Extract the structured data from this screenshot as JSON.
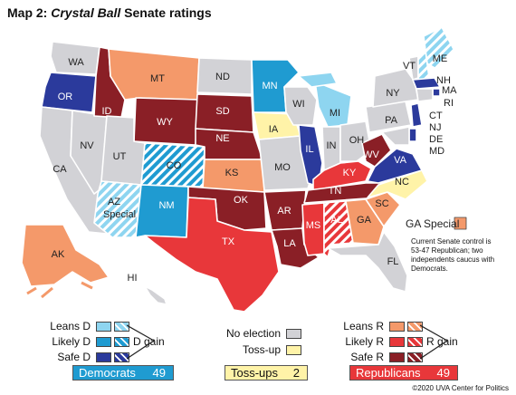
{
  "title": {
    "prefix": "Map 2: ",
    "italic": "Crystal Ball",
    "suffix": " Senate ratings"
  },
  "colors": {
    "no_election": "#d2d2d6",
    "toss_up": "#fff3a8",
    "safe_d": "#2b3a9c",
    "likely_d": "#1f9bd1",
    "leans_d": "#8ed5f0",
    "safe_r": "#8a1f26",
    "likely_r": "#e8373a",
    "leans_r": "#f4996a"
  },
  "states": {
    "WA": "WA",
    "OR": "OR",
    "CA": "CA",
    "ID": "ID",
    "NV": "NV",
    "MT": "MT",
    "WY": "WY",
    "UT": "UT",
    "AZ": "AZ",
    "AZ2": "Special",
    "CO": "CO",
    "NM": "NM",
    "ND": "ND",
    "SD": "SD",
    "NE": "NE",
    "KS": "KS",
    "OK": "OK",
    "TX": "TX",
    "MN": "MN",
    "IA": "IA",
    "MO": "MO",
    "AR": "AR",
    "LA": "LA",
    "WI": "WI",
    "IL": "IL",
    "MS": "MS",
    "MI": "MI",
    "IN": "IN",
    "KY": "KY",
    "TN": "TN",
    "AL": "AL",
    "OH": "OH",
    "GA": "GA",
    "FL": "FL",
    "SC": "SC",
    "NC": "NC",
    "VA": "VA",
    "WV": "WV",
    "PA": "PA",
    "NY": "NY",
    "VT": "VT",
    "ME": "ME",
    "NH": "NH",
    "MA": "MA",
    "RI": "RI",
    "CT": "CT",
    "NJ": "NJ",
    "DE": "DE",
    "MD": "MD",
    "AK": "AK",
    "HI": "HI"
  },
  "ga_special": "GA Special",
  "note": [
    "Current Senate control is",
    "53-47 Republican; two",
    "independents caucus with",
    "Democrats."
  ],
  "legend": {
    "leans_d": "Leans D",
    "likely_d": "Likely D",
    "safe_d": "Safe D",
    "d_gain": "D gain",
    "no_election": "No election",
    "toss_up": "Toss-up",
    "leans_r": "Leans R",
    "likely_r": "Likely R",
    "safe_r": "Safe R",
    "r_gain": "R gain",
    "democrats": "Democrats",
    "democrats_n": "49",
    "tossups": "Toss-ups",
    "tossups_n": "2",
    "republicans": "Republicans",
    "republicans_n": "49"
  },
  "credit": "©2020 UVA Center for Politics"
}
